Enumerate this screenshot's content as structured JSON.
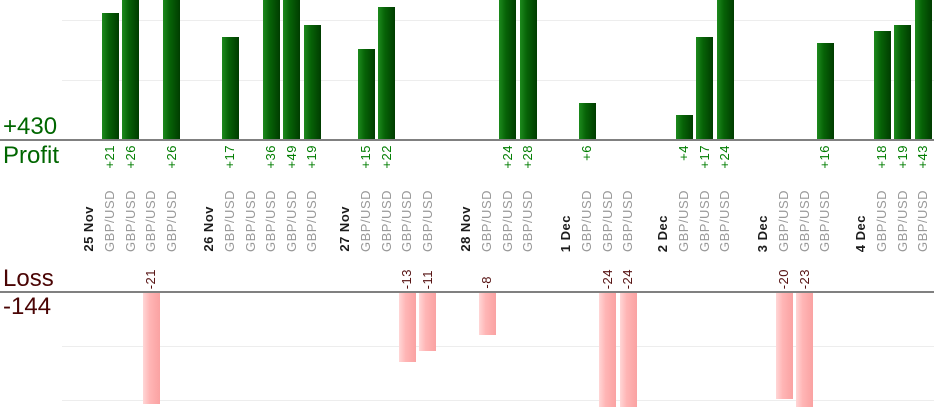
{
  "header": {
    "profit_total": "+430",
    "profit_label": "Profit",
    "loss_label": "Loss",
    "loss_total": "-144"
  },
  "chart_data": {
    "type": "bar",
    "title": "",
    "instrument_label": "GBP/USD",
    "groups": [
      {
        "date": "25 Nov",
        "trades": [
          21,
          26,
          -21,
          26
        ]
      },
      {
        "date": "26 Nov",
        "trades": [
          17,
          0,
          36,
          49,
          19
        ]
      },
      {
        "date": "27 Nov",
        "trades": [
          15,
          22,
          -13,
          -11
        ]
      },
      {
        "date": "28 Nov",
        "trades": [
          -8,
          24,
          28
        ]
      },
      {
        "date": "1 Dec",
        "trades": [
          6,
          -24,
          -24
        ]
      },
      {
        "date": "2 Dec",
        "trades": [
          4,
          17,
          24
        ]
      },
      {
        "date": "3 Dec",
        "trades": [
          -20,
          -23,
          16
        ]
      },
      {
        "date": "4 Dec",
        "trades": [
          18,
          19,
          43
        ]
      }
    ],
    "profit_total": 430,
    "loss_total": -144,
    "value_label_format": "signed",
    "gridline_step": 10,
    "legend_position": "none",
    "layout_hint": "profit bars grow up from upper axis, loss bars grow down from lower axis, labels rotated 90deg"
  },
  "colors": {
    "profit_text": "#006600",
    "profit_value_text": "#007d00",
    "loss_text": "#4a0404",
    "loss_value_text": "#551111",
    "bar_green_start": "#1d8a1d",
    "bar_green_mid": "#076307",
    "bar_green_end": "#003c00",
    "bar_pink_start": "#ffd6d6",
    "bar_pink_mid": "#ffb5b5",
    "bar_pink_end": "#faa2a2",
    "axis_line": "#808080",
    "gridline": "#ededed",
    "date_text": "#1c1c1c",
    "instrument_text": "#999999"
  }
}
